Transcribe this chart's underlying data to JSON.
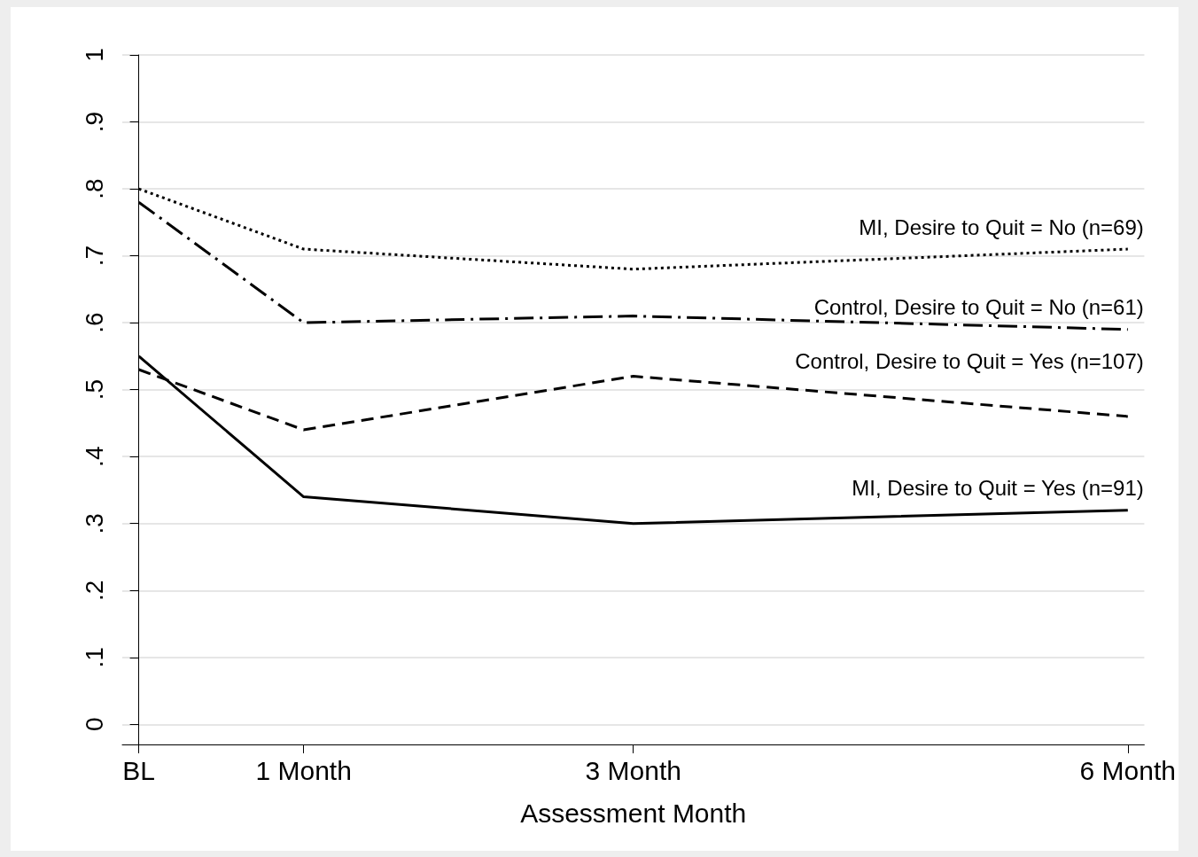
{
  "chart_data": {
    "type": "line",
    "xlabel": "Assessment Month",
    "x": [
      0,
      1,
      3,
      6
    ],
    "xlim": [
      -0.1,
      6.1
    ],
    "xticks": [
      {
        "value": 0,
        "label": "BL"
      },
      {
        "value": 1,
        "label": "1 Month"
      },
      {
        "value": 3,
        "label": "3 Month"
      },
      {
        "value": 6,
        "label": "6 Month"
      }
    ],
    "ylim": [
      -0.03,
      1
    ],
    "yticks": [
      {
        "value": 0,
        "label": "0"
      },
      {
        "value": 0.1,
        "label": ".1"
      },
      {
        "value": 0.2,
        "label": ".2"
      },
      {
        "value": 0.3,
        "label": ".3"
      },
      {
        "value": 0.4,
        "label": ".4"
      },
      {
        "value": 0.5,
        "label": ".5"
      },
      {
        "value": 0.6,
        "label": ".6"
      },
      {
        "value": 0.7,
        "label": ".7"
      },
      {
        "value": 0.8,
        "label": ".8"
      },
      {
        "value": 0.9,
        "label": ".9"
      },
      {
        "value": 1,
        "label": "1"
      }
    ],
    "grid": "y",
    "legend": false,
    "series": [
      {
        "name": "MI, Desire to Quit = No (n=69)",
        "color": "#000000",
        "line_style": "dotted",
        "values": [
          0.8,
          0.71,
          0.68,
          0.71
        ]
      },
      {
        "name": "Control, Desire to Quit = No (n=61)",
        "color": "#000000",
        "line_style": "dashdot",
        "values": [
          0.78,
          0.6,
          0.61,
          0.59
        ]
      },
      {
        "name": "Control, Desire to Quit = Yes (n=107)",
        "color": "#000000",
        "line_style": "dashed",
        "values": [
          0.53,
          0.44,
          0.52,
          0.46
        ]
      },
      {
        "name": "MI, Desire to Quit = Yes (n=91)",
        "color": "#000000",
        "line_style": "solid",
        "values": [
          0.55,
          0.34,
          0.3,
          0.32
        ]
      }
    ]
  }
}
